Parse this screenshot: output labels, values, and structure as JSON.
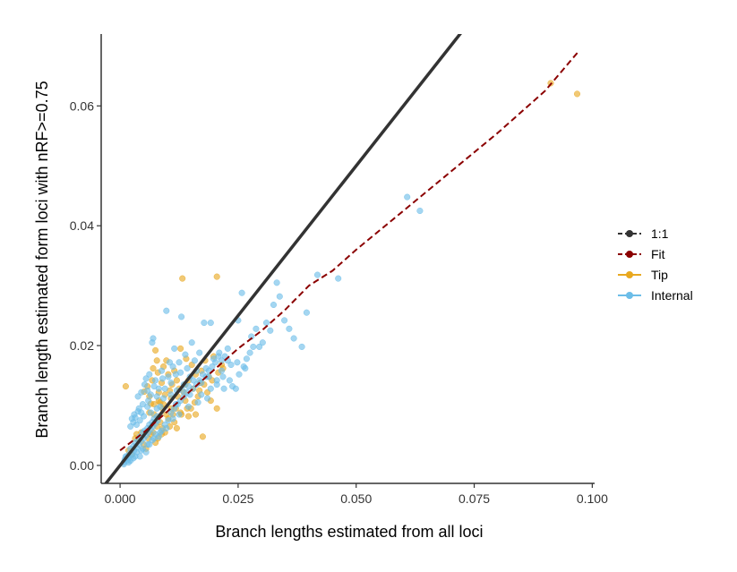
{
  "chart_data": {
    "type": "scatter",
    "xlabel": "Branch lengths estimated from all loci",
    "ylabel": "Branch length estimated form loci with nRF>=0.75",
    "xlim": [
      -0.004,
      0.1005
    ],
    "ylim": [
      -0.003,
      0.072
    ],
    "x_ticks": [
      0.0,
      0.025,
      0.05,
      0.075,
      0.1
    ],
    "x_tick_labels": [
      "0.000",
      "0.025",
      "0.050",
      "0.075",
      "0.100"
    ],
    "y_ticks": [
      0.0,
      0.02,
      0.04,
      0.06
    ],
    "y_tick_labels": [
      "0.00",
      "0.02",
      "0.04",
      "0.06"
    ],
    "legend_position": "right",
    "legend": [
      {
        "name": "1:1",
        "color": "#333333"
      },
      {
        "name": "Fit",
        "color": "#8b0000"
      },
      {
        "name": "Tip",
        "color": "#e8a820"
      },
      {
        "name": "Internal",
        "color": "#6cbde8"
      }
    ],
    "one_to_one_line": {
      "x": [
        -0.01,
        0.075
      ],
      "y": [
        -0.01,
        0.075
      ]
    },
    "fit_line": {
      "x": [
        0.0,
        0.005,
        0.01,
        0.015,
        0.02,
        0.025,
        0.03,
        0.035,
        0.04,
        0.045,
        0.05,
        0.06,
        0.07,
        0.08,
        0.09,
        0.097
      ],
      "y": [
        0.0025,
        0.0055,
        0.009,
        0.0125,
        0.016,
        0.0195,
        0.0225,
        0.026,
        0.03,
        0.0325,
        0.036,
        0.0425,
        0.049,
        0.0555,
        0.0625,
        0.069
      ]
    },
    "series": [
      {
        "name": "Tip",
        "color": "#e8a820",
        "points": [
          [
            0.0012,
            0.0132
          ],
          [
            0.0032,
            0.0045
          ],
          [
            0.0045,
            0.0055
          ],
          [
            0.0051,
            0.0123
          ],
          [
            0.0058,
            0.0132
          ],
          [
            0.0062,
            0.0115
          ],
          [
            0.0065,
            0.0103
          ],
          [
            0.0068,
            0.0142
          ],
          [
            0.007,
            0.0162
          ],
          [
            0.0072,
            0.0085
          ],
          [
            0.0075,
            0.0192
          ],
          [
            0.0078,
            0.0175
          ],
          [
            0.008,
            0.0155
          ],
          [
            0.0082,
            0.0122
          ],
          [
            0.0085,
            0.0105
          ],
          [
            0.0088,
            0.0138
          ],
          [
            0.009,
            0.0095
          ],
          [
            0.0092,
            0.0165
          ],
          [
            0.0095,
            0.0118
          ],
          [
            0.0098,
            0.0085
          ],
          [
            0.0098,
            0.0175
          ],
          [
            0.0102,
            0.0152
          ],
          [
            0.0105,
            0.0125
          ],
          [
            0.0108,
            0.0112
          ],
          [
            0.011,
            0.0135
          ],
          [
            0.0112,
            0.0085
          ],
          [
            0.0115,
            0.0158
          ],
          [
            0.0118,
            0.0095
          ],
          [
            0.012,
            0.0142
          ],
          [
            0.0122,
            0.0115
          ],
          [
            0.0125,
            0.0128
          ],
          [
            0.0128,
            0.0195
          ],
          [
            0.013,
            0.0085
          ],
          [
            0.0132,
            0.0312
          ],
          [
            0.0135,
            0.0122
          ],
          [
            0.0138,
            0.0108
          ],
          [
            0.014,
            0.0178
          ],
          [
            0.0145,
            0.0142
          ],
          [
            0.015,
            0.0095
          ],
          [
            0.0155,
            0.0128
          ],
          [
            0.016,
            0.0152
          ],
          [
            0.0165,
            0.0115
          ],
          [
            0.017,
            0.0138
          ],
          [
            0.0175,
            0.0048
          ],
          [
            0.018,
            0.0175
          ],
          [
            0.0185,
            0.0122
          ],
          [
            0.0198,
            0.0182
          ],
          [
            0.0205,
            0.0315
          ],
          [
            0.0215,
            0.0168
          ],
          [
            0.0205,
            0.0095
          ],
          [
            0.005,
            0.0035
          ],
          [
            0.006,
            0.0045
          ],
          [
            0.007,
            0.0055
          ],
          [
            0.008,
            0.0045
          ],
          [
            0.009,
            0.0062
          ],
          [
            0.0095,
            0.0055
          ],
          [
            0.0105,
            0.0065
          ],
          [
            0.012,
            0.0062
          ],
          [
            0.0085,
            0.0072
          ],
          [
            0.0065,
            0.0052
          ],
          [
            0.004,
            0.0042
          ],
          [
            0.0055,
            0.0028
          ],
          [
            0.0075,
            0.0038
          ],
          [
            0.0078,
            0.0065
          ],
          [
            0.0088,
            0.0052
          ],
          [
            0.0102,
            0.0078
          ],
          [
            0.0115,
            0.0072
          ],
          [
            0.0128,
            0.0088
          ],
          [
            0.0142,
            0.0095
          ],
          [
            0.0158,
            0.0105
          ],
          [
            0.0168,
            0.0125
          ],
          [
            0.0178,
            0.0135
          ],
          [
            0.0188,
            0.0148
          ],
          [
            0.0195,
            0.0142
          ],
          [
            0.0208,
            0.0155
          ],
          [
            0.0218,
            0.0162
          ],
          [
            0.0145,
            0.0082
          ],
          [
            0.016,
            0.0085
          ],
          [
            0.0025,
            0.0018
          ],
          [
            0.0018,
            0.0025
          ],
          [
            0.0035,
            0.0052
          ],
          [
            0.0062,
            0.0088
          ],
          [
            0.0072,
            0.0102
          ],
          [
            0.0082,
            0.0108
          ],
          [
            0.0092,
            0.0102
          ],
          [
            0.0108,
            0.0095
          ],
          [
            0.0138,
            0.0135
          ],
          [
            0.0152,
            0.0168
          ],
          [
            0.0172,
            0.0158
          ],
          [
            0.0192,
            0.0108
          ],
          [
            0.0912,
            0.0638
          ],
          [
            0.0968,
            0.062
          ]
        ]
      },
      {
        "name": "Internal",
        "color": "#6cbde8",
        "points": [
          [
            0.0008,
            0.0005
          ],
          [
            0.001,
            0.001
          ],
          [
            0.0012,
            0.0015
          ],
          [
            0.0015,
            0.0008
          ],
          [
            0.0018,
            0.0012
          ],
          [
            0.002,
            0.002
          ],
          [
            0.0022,
            0.0028
          ],
          [
            0.0025,
            0.0018
          ],
          [
            0.0028,
            0.0032
          ],
          [
            0.003,
            0.0025
          ],
          [
            0.0032,
            0.0038
          ],
          [
            0.0035,
            0.003
          ],
          [
            0.0038,
            0.0042
          ],
          [
            0.004,
            0.0035
          ],
          [
            0.0042,
            0.0048
          ],
          [
            0.0045,
            0.004
          ],
          [
            0.0048,
            0.0055
          ],
          [
            0.005,
            0.0045
          ],
          [
            0.0052,
            0.0058
          ],
          [
            0.0055,
            0.005
          ],
          [
            0.0058,
            0.0062
          ],
          [
            0.006,
            0.0055
          ],
          [
            0.0062,
            0.0068
          ],
          [
            0.0065,
            0.006
          ],
          [
            0.0068,
            0.0072
          ],
          [
            0.007,
            0.0065
          ],
          [
            0.0072,
            0.0078
          ],
          [
            0.0075,
            0.007
          ],
          [
            0.0078,
            0.0082
          ],
          [
            0.008,
            0.0075
          ],
          [
            0.0022,
            0.0065
          ],
          [
            0.0025,
            0.0078
          ],
          [
            0.0028,
            0.0072
          ],
          [
            0.003,
            0.0085
          ],
          [
            0.0032,
            0.008
          ],
          [
            0.0035,
            0.0068
          ],
          [
            0.0038,
            0.009
          ],
          [
            0.004,
            0.0095
          ],
          [
            0.0042,
            0.0075
          ],
          [
            0.0045,
            0.0088
          ],
          [
            0.0048,
            0.0102
          ],
          [
            0.005,
            0.0082
          ],
          [
            0.0052,
            0.0135
          ],
          [
            0.0055,
            0.0145
          ],
          [
            0.0058,
            0.0125
          ],
          [
            0.006,
            0.0108
          ],
          [
            0.0062,
            0.0152
          ],
          [
            0.0065,
            0.0118
          ],
          [
            0.0068,
            0.0205
          ],
          [
            0.007,
            0.0212
          ],
          [
            0.0072,
            0.0132
          ],
          [
            0.0075,
            0.0142
          ],
          [
            0.0078,
            0.0115
          ],
          [
            0.0082,
            0.0128
          ],
          [
            0.0085,
            0.0098
          ],
          [
            0.0088,
            0.0158
          ],
          [
            0.009,
            0.0145
          ],
          [
            0.0095,
            0.0128
          ],
          [
            0.0098,
            0.0258
          ],
          [
            0.0102,
            0.0148
          ],
          [
            0.0105,
            0.0172
          ],
          [
            0.0108,
            0.0138
          ],
          [
            0.0112,
            0.0165
          ],
          [
            0.0115,
            0.0195
          ],
          [
            0.0118,
            0.0152
          ],
          [
            0.012,
            0.0125
          ],
          [
            0.0125,
            0.0172
          ],
          [
            0.0128,
            0.0155
          ],
          [
            0.013,
            0.0248
          ],
          [
            0.0135,
            0.0135
          ],
          [
            0.0138,
            0.0185
          ],
          [
            0.0142,
            0.0162
          ],
          [
            0.0148,
            0.0148
          ],
          [
            0.0152,
            0.0205
          ],
          [
            0.0158,
            0.0175
          ],
          [
            0.0162,
            0.0158
          ],
          [
            0.0168,
            0.0188
          ],
          [
            0.0172,
            0.0138
          ],
          [
            0.0178,
            0.0238
          ],
          [
            0.0182,
            0.0162
          ],
          [
            0.0188,
            0.0148
          ],
          [
            0.0192,
            0.0238
          ],
          [
            0.0198,
            0.0178
          ],
          [
            0.0205,
            0.0142
          ],
          [
            0.021,
            0.0188
          ],
          [
            0.0215,
            0.0158
          ],
          [
            0.022,
            0.0128
          ],
          [
            0.0228,
            0.0195
          ],
          [
            0.0232,
            0.0142
          ],
          [
            0.0238,
            0.0132
          ],
          [
            0.0245,
            0.0128
          ],
          [
            0.025,
            0.0242
          ],
          [
            0.0252,
            0.0152
          ],
          [
            0.0258,
            0.0288
          ],
          [
            0.0262,
            0.0165
          ],
          [
            0.0268,
            0.0178
          ],
          [
            0.0275,
            0.0188
          ],
          [
            0.0278,
            0.0215
          ],
          [
            0.0282,
            0.0198
          ],
          [
            0.0288,
            0.0228
          ],
          [
            0.0295,
            0.0198
          ],
          [
            0.0302,
            0.0205
          ],
          [
            0.031,
            0.0238
          ],
          [
            0.0318,
            0.0225
          ],
          [
            0.0325,
            0.0268
          ],
          [
            0.0332,
            0.0305
          ],
          [
            0.0338,
            0.0282
          ],
          [
            0.0348,
            0.0242
          ],
          [
            0.0358,
            0.0228
          ],
          [
            0.0368,
            0.0212
          ],
          [
            0.0385,
            0.0198
          ],
          [
            0.0395,
            0.0255
          ],
          [
            0.0418,
            0.0318
          ],
          [
            0.0462,
            0.0312
          ],
          [
            0.0608,
            0.0448
          ],
          [
            0.0635,
            0.0425
          ],
          [
            0.0008,
            0.0002
          ],
          [
            0.0015,
            0.0015
          ],
          [
            0.0022,
            0.0008
          ],
          [
            0.0028,
            0.0012
          ],
          [
            0.0035,
            0.0022
          ],
          [
            0.0042,
            0.0015
          ],
          [
            0.0048,
            0.0028
          ],
          [
            0.0055,
            0.0022
          ],
          [
            0.0062,
            0.0035
          ],
          [
            0.0068,
            0.0042
          ],
          [
            0.0075,
            0.0052
          ],
          [
            0.0082,
            0.0048
          ],
          [
            0.0088,
            0.0058
          ],
          [
            0.0095,
            0.0068
          ],
          [
            0.0102,
            0.0075
          ],
          [
            0.0108,
            0.0088
          ],
          [
            0.0115,
            0.0095
          ],
          [
            0.0122,
            0.0102
          ],
          [
            0.0128,
            0.0108
          ],
          [
            0.0135,
            0.0115
          ],
          [
            0.0142,
            0.0122
          ],
          [
            0.0148,
            0.0118
          ],
          [
            0.0155,
            0.0128
          ],
          [
            0.0162,
            0.0135
          ],
          [
            0.0168,
            0.0142
          ],
          [
            0.0175,
            0.0152
          ],
          [
            0.0182,
            0.0148
          ],
          [
            0.0188,
            0.0158
          ],
          [
            0.0195,
            0.0165
          ],
          [
            0.0202,
            0.0172
          ],
          [
            0.0208,
            0.0182
          ],
          [
            0.0215,
            0.0175
          ],
          [
            0.0222,
            0.0182
          ],
          [
            0.0228,
            0.0175
          ],
          [
            0.0185,
            0.0112
          ],
          [
            0.0165,
            0.0105
          ],
          [
            0.0145,
            0.0098
          ],
          [
            0.0125,
            0.0085
          ],
          [
            0.0112,
            0.0078
          ],
          [
            0.0098,
            0.0062
          ],
          [
            0.0085,
            0.0055
          ],
          [
            0.0072,
            0.0045
          ],
          [
            0.0058,
            0.0035
          ],
          [
            0.0045,
            0.0025
          ],
          [
            0.0032,
            0.0015
          ],
          [
            0.0018,
            0.0005
          ],
          [
            0.0038,
            0.0115
          ],
          [
            0.0045,
            0.0122
          ],
          [
            0.0058,
            0.0098
          ],
          [
            0.0065,
            0.0088
          ],
          [
            0.0078,
            0.0095
          ],
          [
            0.0092,
            0.0112
          ],
          [
            0.0108,
            0.0118
          ],
          [
            0.0118,
            0.0102
          ],
          [
            0.0132,
            0.0125
          ],
          [
            0.0145,
            0.0132
          ],
          [
            0.0155,
            0.0142
          ],
          [
            0.0172,
            0.0118
          ],
          [
            0.0192,
            0.0128
          ],
          [
            0.0205,
            0.0135
          ],
          [
            0.0218,
            0.0148
          ],
          [
            0.0235,
            0.0168
          ],
          [
            0.0248,
            0.0172
          ],
          [
            0.0265,
            0.0162
          ]
        ]
      }
    ]
  }
}
